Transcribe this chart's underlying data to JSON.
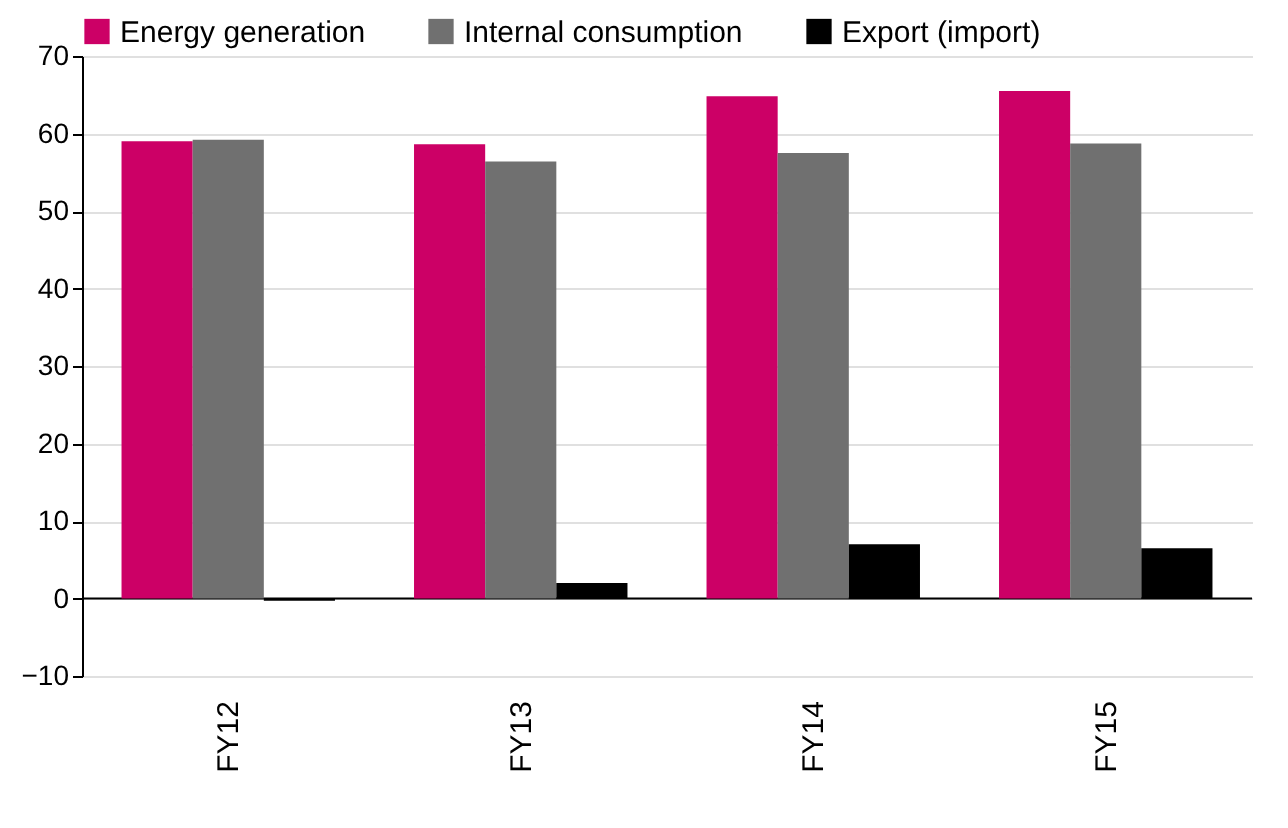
{
  "chart_data": {
    "type": "bar",
    "categories": [
      "FY12",
      "FY13",
      "FY14",
      "FY15"
    ],
    "series": [
      {
        "name": "Energy generation",
        "color": "#cc0066",
        "values": [
          59,
          58.6,
          64.8,
          65.5
        ]
      },
      {
        "name": "Internal consumption",
        "color": "#707070",
        "values": [
          59.2,
          56.4,
          57.5,
          58.7
        ]
      },
      {
        "name": "Export (import)",
        "color": "#000000",
        "values": [
          -0.3,
          2,
          7,
          6.5
        ]
      }
    ],
    "ylim": [
      -10,
      70
    ],
    "yticks": [
      -10,
      0,
      10,
      20,
      30,
      40,
      50,
      60,
      70
    ],
    "grid": "y",
    "legend": "top"
  }
}
